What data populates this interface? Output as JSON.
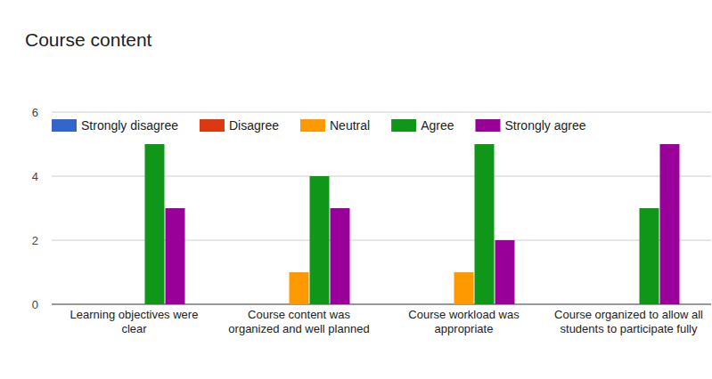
{
  "chart_data": {
    "type": "bar",
    "title": "Course content",
    "categories": [
      "Learning objectives were clear",
      "Course content was organized and well planned",
      "Course workload was appropriate",
      "Course organized to allow all students to participate fully"
    ],
    "series": [
      {
        "name": "Strongly disagree",
        "color": "#3366cc",
        "values": [
          0,
          0,
          0,
          0
        ]
      },
      {
        "name": "Disagree",
        "color": "#dc3912",
        "values": [
          0,
          0,
          0,
          0
        ]
      },
      {
        "name": "Neutral",
        "color": "#ff9900",
        "values": [
          0,
          1,
          1,
          0
        ]
      },
      {
        "name": "Agree",
        "color": "#109618",
        "values": [
          5,
          4,
          5,
          3
        ]
      },
      {
        "name": "Strongly agree",
        "color": "#990099",
        "values": [
          3,
          3,
          2,
          5
        ]
      }
    ],
    "ylim": [
      0,
      6
    ],
    "yticks": [
      0,
      2,
      4,
      6
    ],
    "grid": true,
    "legend": "top"
  }
}
